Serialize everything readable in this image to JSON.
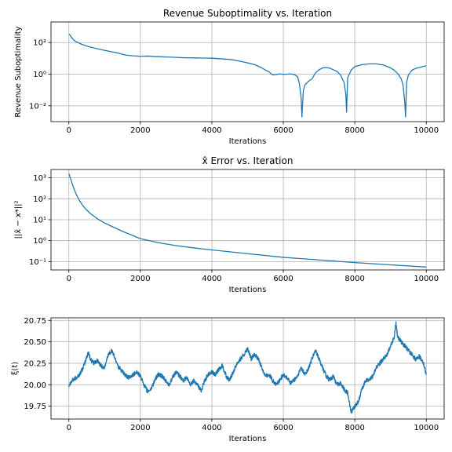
{
  "chart_data": [
    {
      "type": "line",
      "title": "Revenue Suboptimality vs. Iteration",
      "xlabel": "Iterations",
      "ylabel": "Revenue Suboptimality",
      "yscale": "log",
      "xlim": [
        -500,
        10500
      ],
      "ylim": [
        0.001,
        2000
      ],
      "grid": true,
      "xticks": [
        0,
        2000,
        4000,
        6000,
        8000,
        10000
      ],
      "xtick_labels": [
        "0",
        "2000",
        "4000",
        "6000",
        "8000",
        "10000"
      ],
      "yticks": [
        0.01,
        1,
        100
      ],
      "ytick_labels": [
        "10⁻²",
        "10⁰",
        "10²"
      ],
      "series": [
        {
          "x": [
            0,
            40,
            80,
            120,
            160,
            200,
            260,
            320,
            400,
            500,
            600,
            700,
            800,
            900,
            1000,
            1200,
            1400,
            1500,
            1600,
            1800,
            2000,
            2200,
            2400,
            2600,
            2800,
            3000,
            3200,
            3400,
            3600,
            3800,
            4000,
            4200,
            4400,
            4600,
            4800,
            5000,
            5200,
            5400,
            5500,
            5600,
            5700,
            5800,
            5900,
            6000,
            6100,
            6200,
            6300,
            6400,
            6450,
            6500,
            6520,
            6560,
            6600,
            6700,
            6800,
            6900,
            7000,
            7100,
            7200,
            7300,
            7400,
            7500,
            7600,
            7700,
            7750,
            7770,
            7800,
            7900,
            8000,
            8200,
            8400,
            8600,
            8800,
            9000,
            9100,
            9200,
            9300,
            9350,
            9400,
            9420,
            9450,
            9500,
            9600,
            9700,
            9800,
            9900,
            10000
          ],
          "y": [
            350,
            280,
            200,
            160,
            130,
            112,
            100,
            85,
            72,
            60,
            52,
            46,
            40,
            36,
            32,
            26,
            21,
            18,
            16,
            14.5,
            13.5,
            14,
            13,
            12.5,
            12,
            11.5,
            11,
            10.8,
            10.5,
            10.4,
            10.2,
            9.5,
            9,
            8,
            6.5,
            5.2,
            4,
            2.5,
            1.8,
            1.4,
            0.9,
            0.95,
            1.05,
            0.98,
            1,
            1.05,
            0.95,
            0.7,
            0.25,
            0.03,
            0.002,
            0.09,
            0.2,
            0.35,
            0.5,
            1.2,
            1.9,
            2.5,
            2.6,
            2.4,
            1.9,
            1.5,
            0.9,
            0.3,
            0.05,
            0.004,
            0.6,
            1.8,
            3,
            4,
            4.5,
            4.5,
            3.8,
            2.5,
            1.8,
            1.1,
            0.5,
            0.2,
            0.015,
            0.002,
            0.3,
            0.9,
            1.8,
            2.3,
            2.6,
            3,
            3.4
          ]
        }
      ]
    },
    {
      "type": "line",
      "title": "x̂ Error vs. Iteration",
      "xlabel": "Iterations",
      "ylabel": "||x̂ − x*||²",
      "yscale": "log",
      "xlim": [
        -500,
        10500
      ],
      "ylim": [
        0.04,
        2500
      ],
      "grid": true,
      "xticks": [
        0,
        2000,
        4000,
        6000,
        8000,
        10000
      ],
      "xtick_labels": [
        "0",
        "2000",
        "4000",
        "6000",
        "8000",
        "10000"
      ],
      "yticks": [
        0.1,
        1,
        10,
        100,
        1000
      ],
      "ytick_labels": [
        "10⁻¹",
        "10⁰",
        "10¹",
        "10²",
        "10³"
      ],
      "series": [
        {
          "x": [
            0,
            50,
            100,
            150,
            200,
            300,
            400,
            500,
            600,
            800,
            1000,
            1200,
            1500,
            2000,
            2500,
            3000,
            3500,
            4000,
            5000,
            6000,
            7000,
            8000,
            9000,
            10000
          ],
          "y": [
            1600,
            900,
            480,
            280,
            170,
            80,
            45,
            29,
            20,
            11,
            7,
            4.8,
            2.8,
            1.25,
            0.8,
            0.58,
            0.45,
            0.36,
            0.24,
            0.16,
            0.12,
            0.09,
            0.07,
            0.055
          ]
        }
      ]
    },
    {
      "type": "line",
      "title": "",
      "xlabel": "Iterations",
      "ylabel": "ξ(t)",
      "xlim": [
        -500,
        10500
      ],
      "ylim": [
        19.6,
        20.78
      ],
      "grid": true,
      "xticks": [
        0,
        2000,
        4000,
        6000,
        8000,
        10000
      ],
      "xtick_labels": [
        "0",
        "2000",
        "4000",
        "6000",
        "8000",
        "10000"
      ],
      "yticks": [
        19.75,
        20.0,
        20.25,
        20.5,
        20.75
      ],
      "ytick_labels": [
        "19.75",
        "20.00",
        "20.25",
        "20.50",
        "20.75"
      ],
      "series": [
        {
          "x": [
            0,
            100,
            200,
            300,
            400,
            500,
            550,
            600,
            700,
            800,
            900,
            1000,
            1100,
            1200,
            1300,
            1400,
            1500,
            1600,
            1700,
            1800,
            1900,
            2000,
            2100,
            2200,
            2300,
            2400,
            2500,
            2600,
            2700,
            2800,
            2900,
            3000,
            3100,
            3200,
            3300,
            3400,
            3500,
            3600,
            3700,
            3800,
            3900,
            4000,
            4100,
            4200,
            4300,
            4400,
            4500,
            4600,
            4700,
            4800,
            4900,
            5000,
            5100,
            5200,
            5300,
            5400,
            5500,
            5600,
            5700,
            5800,
            5900,
            6000,
            6100,
            6200,
            6300,
            6400,
            6500,
            6600,
            6700,
            6800,
            6900,
            7000,
            7100,
            7200,
            7300,
            7400,
            7500,
            7600,
            7700,
            7800,
            7900,
            8000,
            8100,
            8200,
            8300,
            8400,
            8500,
            8600,
            8700,
            8800,
            8900,
            9000,
            9100,
            9150,
            9200,
            9300,
            9400,
            9500,
            9600,
            9700,
            9800,
            9900,
            10000
          ],
          "y": [
            20.0,
            20.05,
            20.08,
            20.12,
            20.2,
            20.32,
            20.38,
            20.3,
            20.25,
            20.28,
            20.22,
            20.2,
            20.35,
            20.4,
            20.3,
            20.2,
            20.15,
            20.1,
            20.08,
            20.12,
            20.15,
            20.1,
            20.0,
            19.92,
            19.95,
            20.05,
            20.12,
            20.1,
            20.05,
            20.0,
            20.08,
            20.15,
            20.1,
            20.05,
            20.08,
            20.0,
            20.05,
            20.0,
            19.93,
            20.05,
            20.12,
            20.15,
            20.12,
            20.18,
            20.22,
            20.1,
            20.05,
            20.15,
            20.25,
            20.3,
            20.35,
            20.42,
            20.3,
            20.35,
            20.3,
            20.2,
            20.1,
            20.12,
            20.05,
            20.0,
            20.05,
            20.12,
            20.08,
            20.02,
            20.05,
            20.1,
            20.2,
            20.12,
            20.18,
            20.3,
            20.4,
            20.3,
            20.2,
            20.1,
            20.05,
            20.1,
            20.0,
            20.02,
            19.95,
            19.9,
            19.68,
            19.75,
            19.8,
            19.95,
            20.05,
            20.05,
            20.1,
            20.2,
            20.25,
            20.3,
            20.35,
            20.45,
            20.55,
            20.72,
            20.55,
            20.5,
            20.45,
            20.4,
            20.35,
            20.3,
            20.33,
            20.28,
            20.12
          ]
        }
      ]
    }
  ]
}
